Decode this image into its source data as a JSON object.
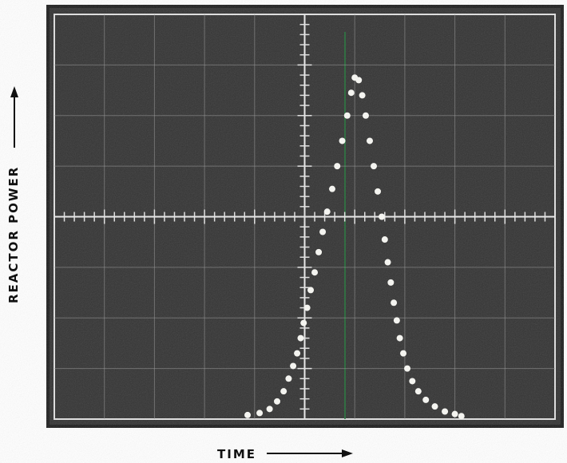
{
  "chart_data": {
    "type": "scatter",
    "x_label": "TIME",
    "y_label": "REACTOR POWER",
    "xlim": [
      0,
      10
    ],
    "ylim": [
      0,
      8
    ],
    "color": "#f4f4f0",
    "x": [
      3.86,
      4.1,
      4.3,
      4.45,
      4.58,
      4.68,
      4.77,
      4.85,
      4.92,
      4.98,
      5.05,
      5.12,
      5.2,
      5.28,
      5.36,
      5.45,
      5.55,
      5.65,
      5.75,
      5.85,
      5.93,
      6.0,
      6.08,
      6.15,
      6.22,
      6.3,
      6.38,
      6.46,
      6.54,
      6.6,
      6.66,
      6.72,
      6.78,
      6.84,
      6.9,
      6.97,
      7.05,
      7.15,
      7.27,
      7.42,
      7.6,
      7.8,
      8.0,
      8.13
    ],
    "values": [
      0.08,
      0.12,
      0.2,
      0.35,
      0.55,
      0.8,
      1.05,
      1.3,
      1.6,
      1.9,
      2.2,
      2.55,
      2.9,
      3.3,
      3.7,
      4.1,
      4.55,
      5.0,
      5.5,
      6.0,
      6.45,
      6.75,
      6.7,
      6.4,
      6.0,
      5.5,
      5.0,
      4.5,
      4.0,
      3.55,
      3.1,
      2.7,
      2.3,
      1.95,
      1.6,
      1.3,
      1.0,
      0.75,
      0.55,
      0.38,
      0.25,
      0.15,
      0.1,
      0.06
    ]
  }
}
